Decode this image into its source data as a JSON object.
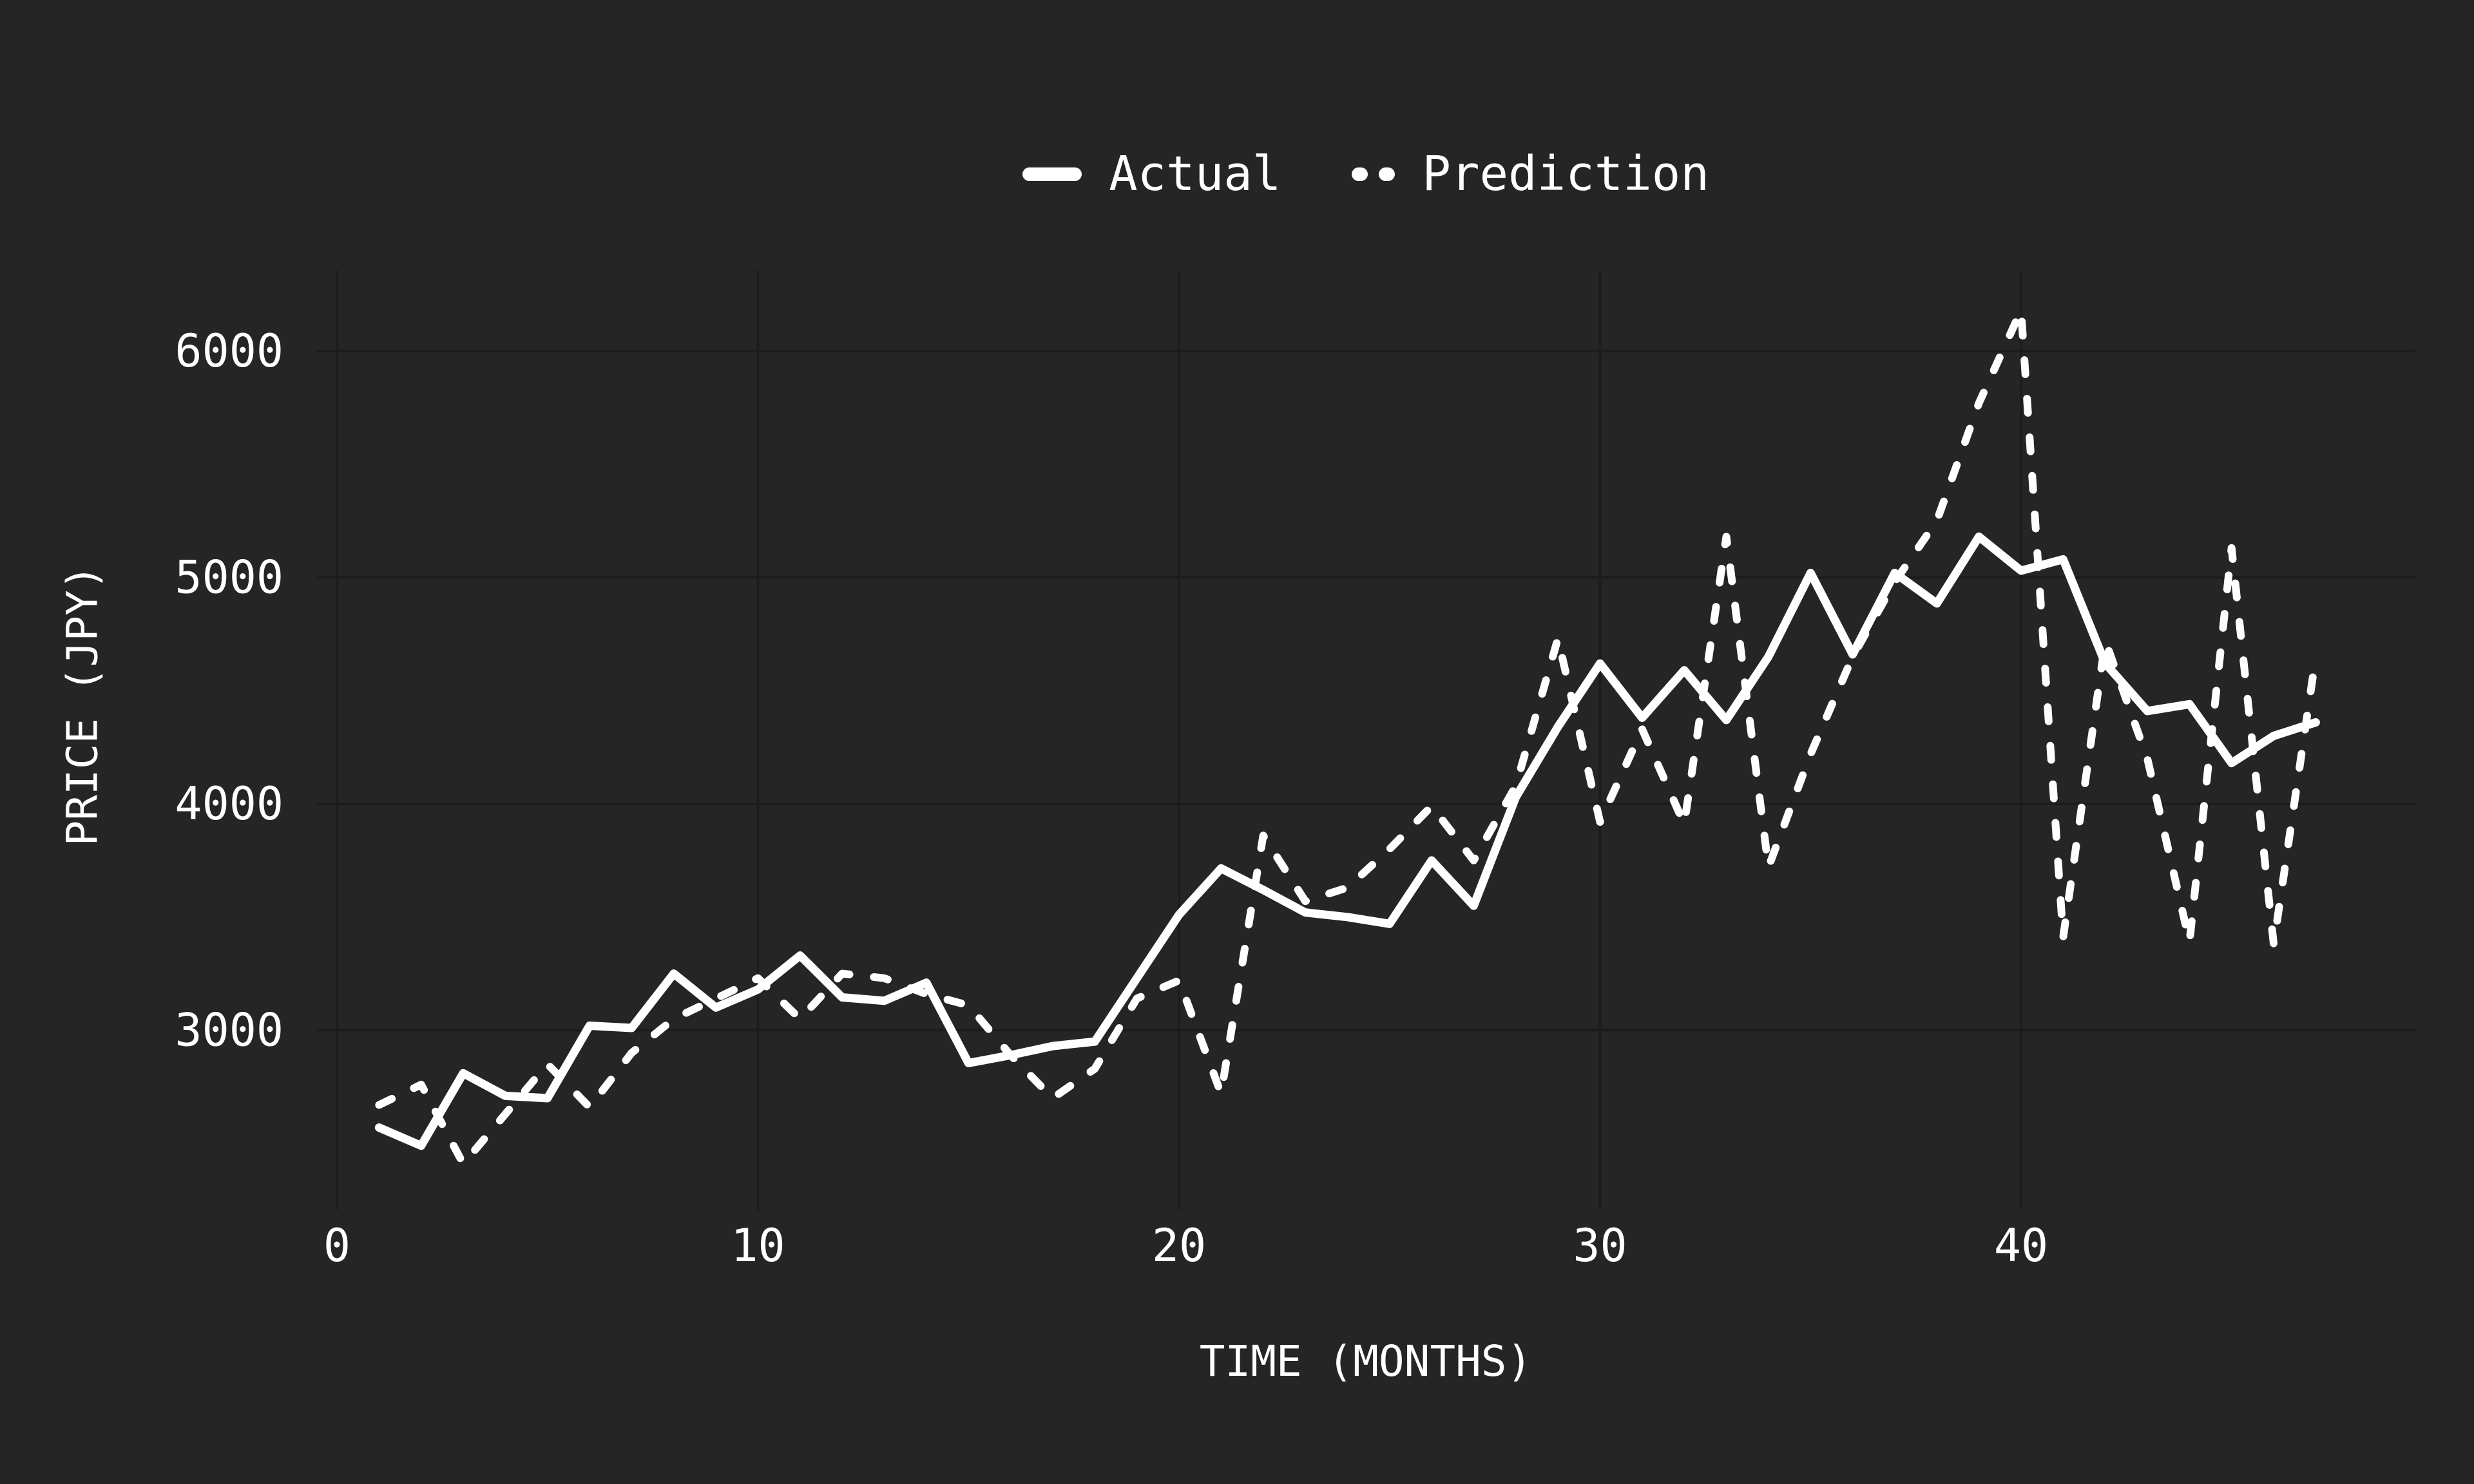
{
  "chart_data": {
    "type": "line",
    "title": "",
    "xlabel": "TIME (MONTHS)",
    "ylabel": "PRICE (JPY)",
    "x_ticks": [
      0,
      10,
      20,
      30,
      40
    ],
    "y_ticks": [
      3000,
      4000,
      5000,
      6000
    ],
    "xlim": [
      -0.5,
      49.3
    ],
    "ylim": [
      2200,
      6360
    ],
    "grid": true,
    "legend_position": "top-center",
    "x": [
      1,
      2,
      3,
      4,
      5,
      6,
      7,
      8,
      9,
      10,
      11,
      12,
      13,
      14,
      15,
      16,
      17,
      18,
      19,
      20,
      21,
      22,
      23,
      24,
      25,
      26,
      27,
      28,
      29,
      30,
      31,
      32,
      33,
      34,
      35,
      36,
      37,
      38,
      39,
      40,
      41,
      42,
      43,
      44,
      45,
      46,
      47
    ],
    "series": [
      {
        "name": "Actual",
        "style": "solid",
        "values": [
          2570,
          2490,
          2810,
          2710,
          2700,
          3020,
          3010,
          3250,
          3100,
          3180,
          3330,
          3145,
          3130,
          3210,
          2855,
          2890,
          2930,
          2950,
          3230,
          3510,
          3715,
          3620,
          3520,
          3500,
          3470,
          3750,
          3550,
          4030,
          4340,
          4620,
          4380,
          4590,
          4370,
          4650,
          5020,
          4660,
          5020,
          4885,
          5180,
          5030,
          5080,
          4620,
          4410,
          4440,
          4180,
          4300,
          4360
        ]
      },
      {
        "name": "Prediction",
        "style": "dashed",
        "values": [
          2670,
          2760,
          2410,
          2630,
          2850,
          2660,
          2900,
          3050,
          3140,
          3230,
          3050,
          3250,
          3230,
          3160,
          3110,
          2890,
          2700,
          2830,
          3140,
          3220,
          2720,
          3860,
          3570,
          3630,
          3800,
          3990,
          3750,
          4080,
          4730,
          3920,
          4330,
          3910,
          5180,
          3720,
          4220,
          4650,
          4980,
          5250,
          5770,
          6180,
          3410,
          4720,
          4200,
          3390,
          5130,
          3380,
          4650
        ]
      }
    ],
    "colors": {
      "background": "#252525",
      "grid": "#1c1c1c",
      "line": "#ffffff",
      "text": "#ffffff"
    }
  }
}
